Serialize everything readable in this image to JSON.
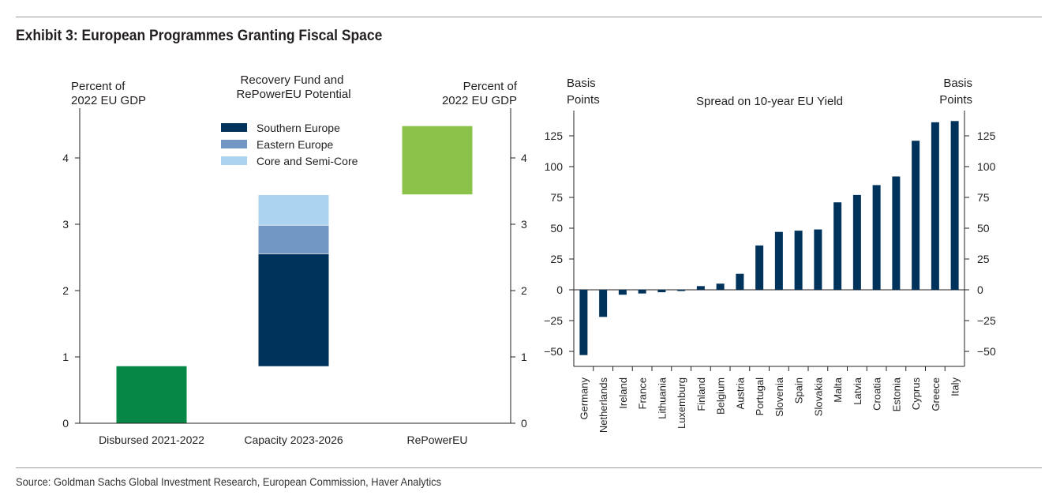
{
  "exhibit_title": "Exhibit 3: European Programmes Granting Fiscal Space",
  "source": "Source: Goldman Sachs Global Investment Research, European Commission, Haver Analytics",
  "chart_data": [
    {
      "type": "bar",
      "subtype": "stacked",
      "title": "Recovery Fund and RePowerEU Potential",
      "title_lines": [
        "Recovery Fund and",
        "RePowerEU Potential"
      ],
      "ylabel_left": [
        "Percent of",
        "2022 EU GDP"
      ],
      "ylabel_right": [
        "Percent of",
        "2022 EU GDP"
      ],
      "ylim": [
        0,
        4.5
      ],
      "yticks": [
        0,
        1,
        2,
        3,
        4
      ],
      "categories": [
        "Disbursed 2021-2022",
        "Capacity 2023-2026",
        "RePowerEU"
      ],
      "legend": [
        {
          "name": "Southern Europe",
          "color": "#00335b"
        },
        {
          "name": "Eastern Europe",
          "color": "#7297c5"
        },
        {
          "name": "Core and Semi-Core",
          "color": "#acd3ef"
        }
      ],
      "bars": [
        {
          "category": "Disbursed 2021-2022",
          "segments": [
            {
              "start": 0,
              "end": 0.86,
              "color": "#078746"
            }
          ]
        },
        {
          "category": "Capacity 2023-2026",
          "segments": [
            {
              "series": "Southern Europe",
              "start": 0.86,
              "end": 2.56,
              "color": "#00335b"
            },
            {
              "series": "Eastern Europe",
              "start": 2.56,
              "end": 2.99,
              "color": "#7297c5"
            },
            {
              "series": "Core and Semi-Core",
              "start": 2.99,
              "end": 3.45,
              "color": "#acd3ef"
            }
          ]
        },
        {
          "category": "RePowerEU",
          "segments": [
            {
              "start": 3.45,
              "end": 4.48,
              "color": "#8bc34a"
            }
          ]
        }
      ]
    },
    {
      "type": "bar",
      "title": "Spread on 10-year EU Yield",
      "ylabel_left": [
        "Basis",
        "Points"
      ],
      "ylabel_right": [
        "Basis",
        "Points"
      ],
      "ylim": [
        -62,
        145
      ],
      "yticks": [
        -50,
        -25,
        0,
        25,
        50,
        75,
        100,
        125
      ],
      "color": "#00335b",
      "categories": [
        "Germany",
        "Netherlands",
        "Ireland",
        "France",
        "Lithuania",
        "Luxemburg",
        "Finland",
        "Belgium",
        "Austria",
        "Portugal",
        "Slovenia",
        "Spain",
        "Slovakia",
        "Malta",
        "Latvia",
        "Croatia",
        "Estonia",
        "Cyprus",
        "Greece",
        "Italy"
      ],
      "values": [
        -53,
        -22,
        -4,
        -3,
        -2,
        -1,
        3,
        5,
        13,
        36,
        47,
        48,
        49,
        71,
        77,
        85,
        92,
        121,
        136,
        137
      ]
    }
  ]
}
